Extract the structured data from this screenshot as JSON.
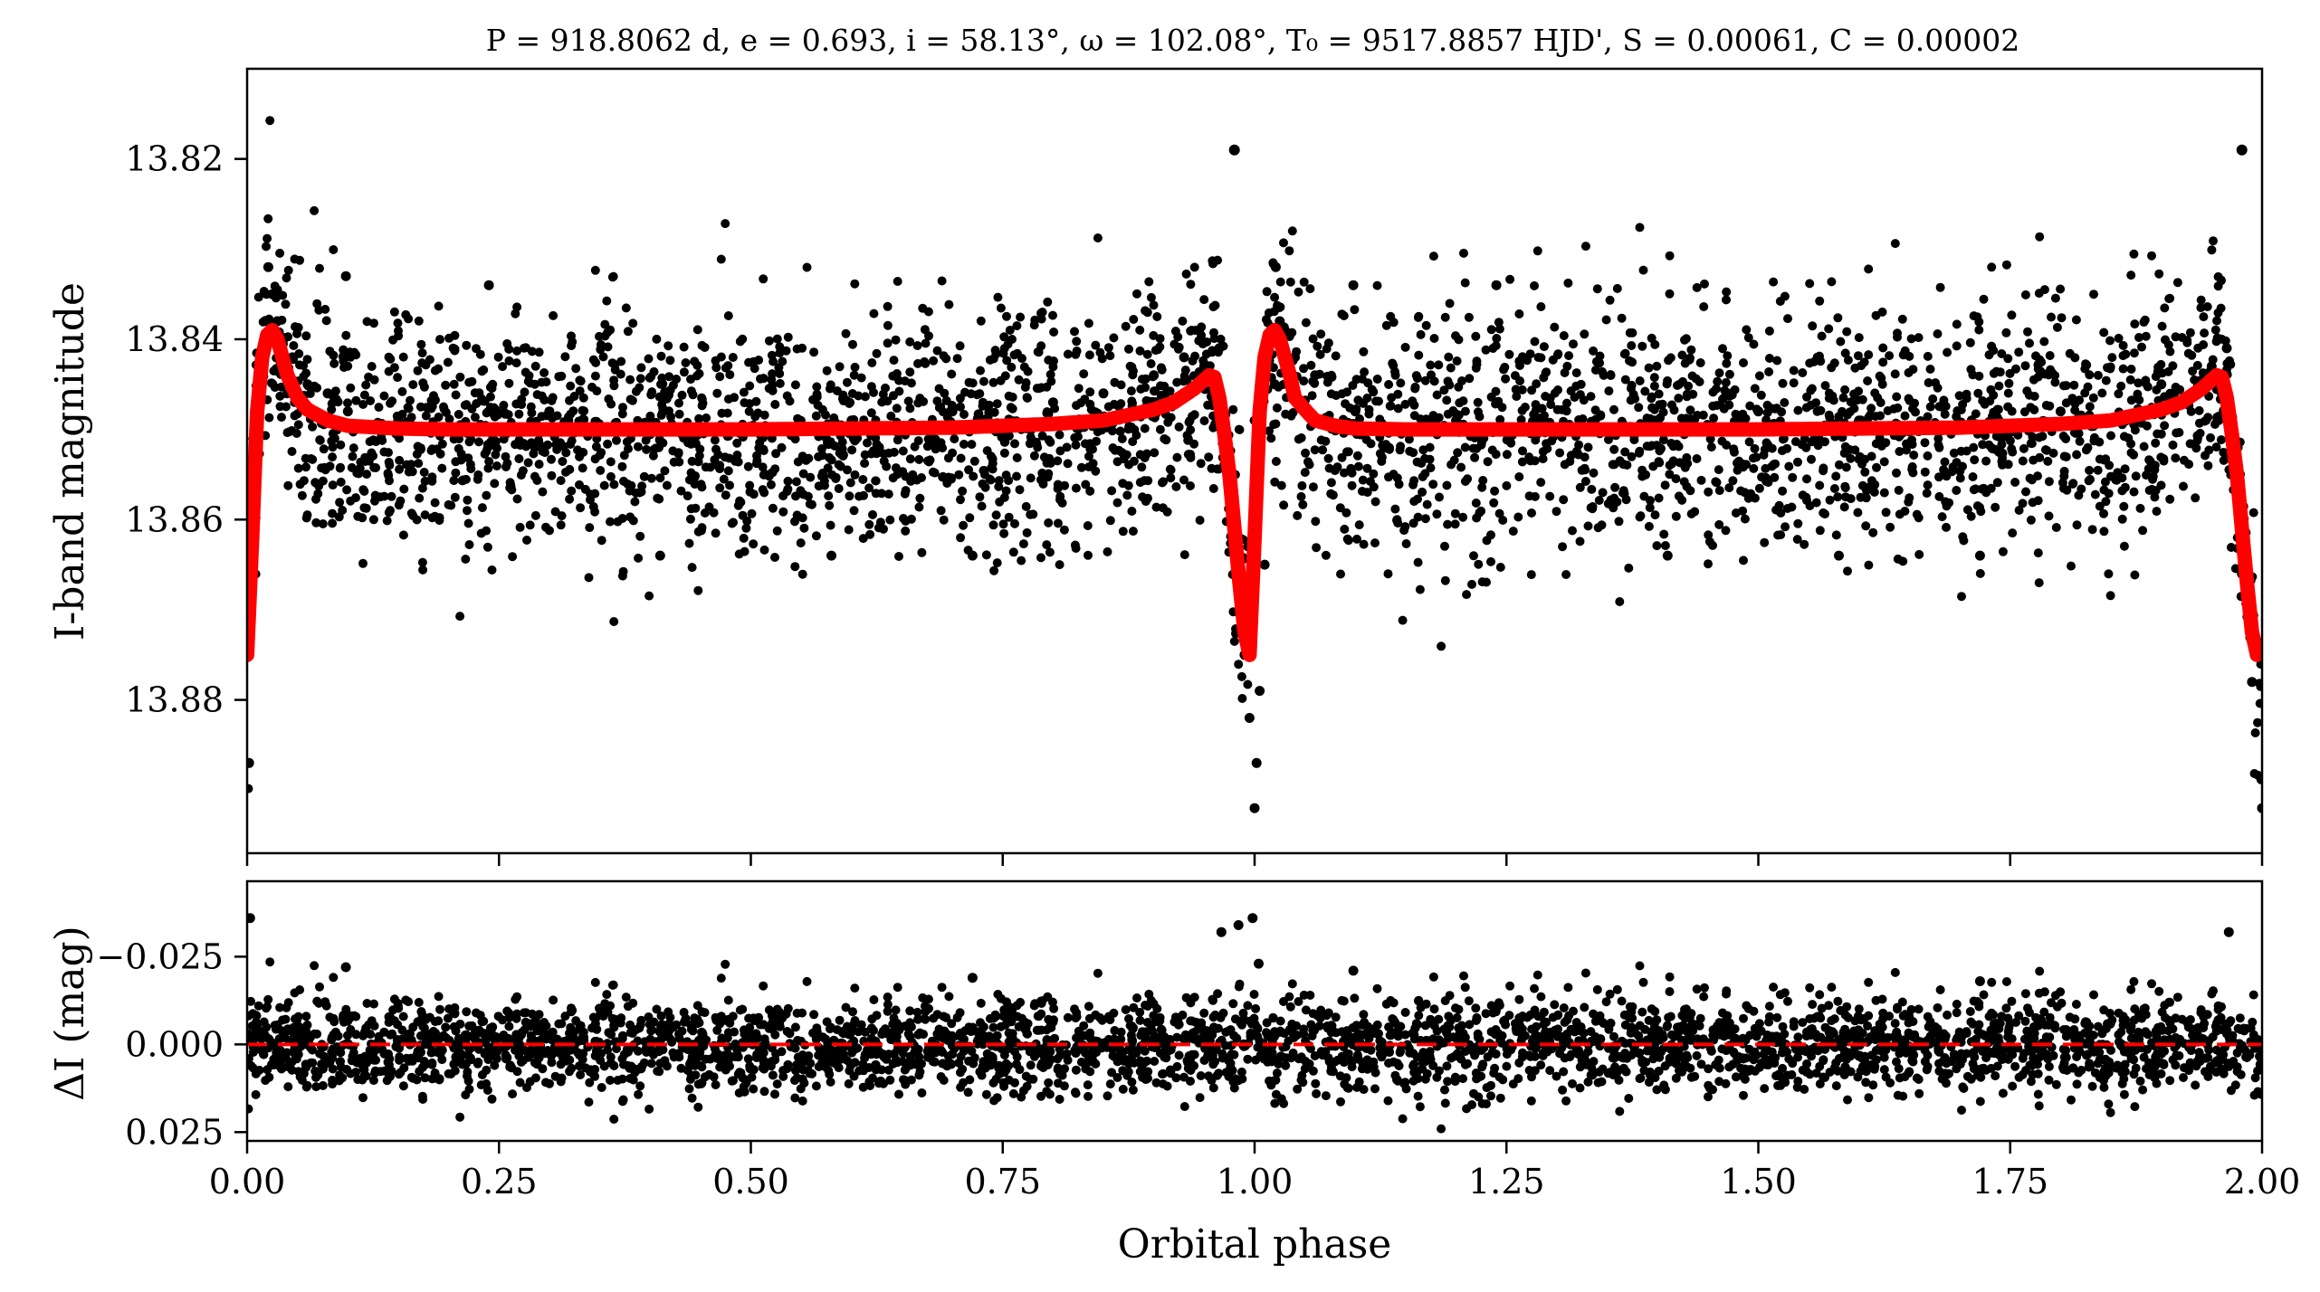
{
  "chart_data": [
    {
      "type": "scatter",
      "panel": "light-curve",
      "title": "P = 918.8062 d, e = 0.693, i = 58.13°, ω = 102.08°, T₀ = 9517.8857 HJD', S = 0.00061, C = 0.00002",
      "xlabel": "",
      "ylabel": "I-band magnitude",
      "xlim": [
        0.0,
        2.0
      ],
      "ylim": [
        13.897,
        13.81
      ],
      "y_inverted": true,
      "yticks": [
        13.82,
        13.84,
        13.86,
        13.88
      ],
      "ytick_labels": [
        "13.82",
        "13.84",
        "13.86",
        "13.88"
      ],
      "xticks": [
        0.0,
        0.25,
        0.5,
        0.75,
        1.0,
        1.25,
        1.5,
        1.75,
        2.0
      ],
      "baseline_magnitude": 13.849,
      "observations_color": "#000000",
      "model_color": "#ff0000",
      "observations": {
        "phase": [
          0.0,
          0.002,
          0.004,
          0.006,
          0.01,
          0.015,
          0.02,
          0.025,
          0.03,
          0.035,
          0.045,
          0.06,
          0.08,
          0.1,
          0.15,
          0.2,
          0.3,
          0.4,
          0.5,
          0.6,
          0.7,
          0.8,
          0.85,
          0.9,
          0.93,
          0.95,
          0.96,
          0.97,
          0.98,
          0.99,
          0.995,
          1.0,
          1.005,
          1.01,
          1.02,
          1.025,
          1.03,
          1.04,
          1.06,
          1.1,
          1.2,
          1.3,
          1.4,
          1.5,
          1.6,
          1.7,
          1.8,
          1.9,
          1.95,
          1.96,
          1.97,
          1.98,
          1.99,
          2.0,
          0.021,
          0.098,
          0.965,
          1.021,
          1.098,
          1.965,
          0.41,
          0.58,
          0.72,
          1.41,
          1.58,
          1.72,
          0.24,
          1.24,
          0.002,
          1.002
        ],
        "magnitude": [
          13.887,
          13.874,
          13.869,
          13.862,
          13.852,
          13.842,
          13.838,
          13.835,
          13.838,
          13.84,
          13.842,
          13.845,
          13.846,
          13.848,
          13.849,
          13.85,
          13.848,
          13.849,
          13.85,
          13.849,
          13.848,
          13.847,
          13.846,
          13.844,
          13.842,
          13.843,
          13.847,
          13.853,
          13.866,
          13.875,
          13.882,
          13.892,
          13.879,
          13.865,
          13.845,
          13.838,
          13.839,
          13.842,
          13.844,
          13.848,
          13.849,
          13.85,
          13.849,
          13.848,
          13.849,
          13.85,
          13.848,
          13.845,
          13.843,
          13.846,
          13.853,
          13.866,
          13.878,
          13.892,
          13.832,
          13.833,
          13.841,
          13.832,
          13.834,
          13.841,
          13.864,
          13.864,
          13.864,
          13.864,
          13.864,
          13.864,
          13.834,
          13.834,
          13.887,
          13.887
        ]
      },
      "model": {
        "phase": [
          0.0,
          0.005,
          0.01,
          0.015,
          0.02,
          0.025,
          0.03,
          0.035,
          0.04,
          0.05,
          0.06,
          0.08,
          0.1,
          0.15,
          0.2,
          0.3,
          0.5,
          0.7,
          0.8,
          0.85,
          0.9,
          0.92,
          0.94,
          0.95,
          0.955,
          0.96,
          0.965,
          0.97,
          0.975,
          0.98,
          0.985,
          0.99,
          0.995,
          1.0,
          1.005,
          1.01,
          1.015,
          1.02,
          1.025,
          1.03,
          1.035,
          1.04,
          1.05,
          1.06,
          1.08,
          1.1,
          1.15,
          1.2,
          1.3,
          1.5,
          1.7,
          1.8,
          1.85,
          1.9,
          1.92,
          1.94,
          1.95,
          1.955,
          1.96,
          1.965,
          1.97,
          1.975,
          1.98,
          1.985,
          1.99,
          1.995,
          2.0
        ],
        "magnitude": [
          13.875,
          13.862,
          13.848,
          13.842,
          13.8395,
          13.839,
          13.84,
          13.842,
          13.844,
          13.8465,
          13.8478,
          13.849,
          13.8496,
          13.8499,
          13.85,
          13.85,
          13.85,
          13.8498,
          13.8494,
          13.849,
          13.8478,
          13.847,
          13.8455,
          13.8445,
          13.844,
          13.8442,
          13.8465,
          13.8505,
          13.855,
          13.861,
          13.867,
          13.8725,
          13.875,
          13.862,
          13.848,
          13.842,
          13.8395,
          13.839,
          13.84,
          13.842,
          13.844,
          13.8465,
          13.8478,
          13.849,
          13.8496,
          13.8499,
          13.85,
          13.85,
          13.85,
          13.85,
          13.8498,
          13.8494,
          13.849,
          13.8478,
          13.847,
          13.8455,
          13.8445,
          13.844,
          13.8442,
          13.8465,
          13.8505,
          13.855,
          13.861,
          13.867,
          13.8725,
          13.875,
          13.8745
        ]
      }
    },
    {
      "type": "scatter",
      "panel": "residuals",
      "title": "",
      "xlabel": "Orbital phase",
      "ylabel": "ΔI (mag)",
      "xlim": [
        0.0,
        2.0
      ],
      "ylim": [
        0.0275,
        -0.0465
      ],
      "y_inverted": true,
      "yticks": [
        -0.025,
        0.0,
        0.025
      ],
      "ytick_labels": [
        "−0.025",
        "0.000",
        "0.025"
      ],
      "xticks": [
        0.0,
        0.25,
        0.5,
        0.75,
        1.0,
        1.25,
        1.5,
        1.75,
        2.0
      ],
      "xtick_labels": [
        "0.00",
        "0.25",
        "0.50",
        "0.75",
        "1.00",
        "1.25",
        "1.50",
        "1.75",
        "2.00"
      ],
      "zero_line": 0.0,
      "zero_line_color": "#ff0000",
      "residual_color": "#000000",
      "outliers": {
        "phase": [
          0.003,
          0.967,
          0.984,
          0.998,
          1.004,
          1.967,
          0.098,
          1.098,
          0.72,
          1.72
        ],
        "residual": [
          -0.036,
          -0.032,
          -0.034,
          -0.036,
          -0.023,
          -0.032,
          -0.022,
          -0.021,
          -0.019,
          -0.018
        ]
      },
      "residual_spread": 0.0075
    }
  ]
}
